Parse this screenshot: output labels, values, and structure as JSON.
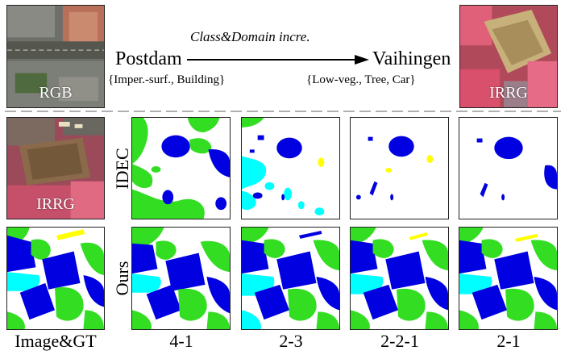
{
  "header": {
    "left_image_label": "RGB",
    "right_image_label": "IRRG",
    "arrow_caption": "Class&Domain incre.",
    "source_domain": "Postdam",
    "target_domain": "Vaihingen",
    "source_classes": "{Imper.-surf., Building}",
    "target_classes": "{Low-veg., Tree,  Car}"
  },
  "rows": {
    "row1_label": "IDEC",
    "row2_label": "Ours",
    "row1_image_label": "IRRG"
  },
  "columns": [
    "Image&GT",
    "4-1",
    "2-3",
    "2-2-1",
    "2-1"
  ],
  "colors": {
    "building": "#0000e0",
    "low_veg": "#00ffff",
    "tree": "#33dd22",
    "car": "#ffff00",
    "imper_surf": "#ffffff",
    "divider": "#b0b0b0"
  }
}
